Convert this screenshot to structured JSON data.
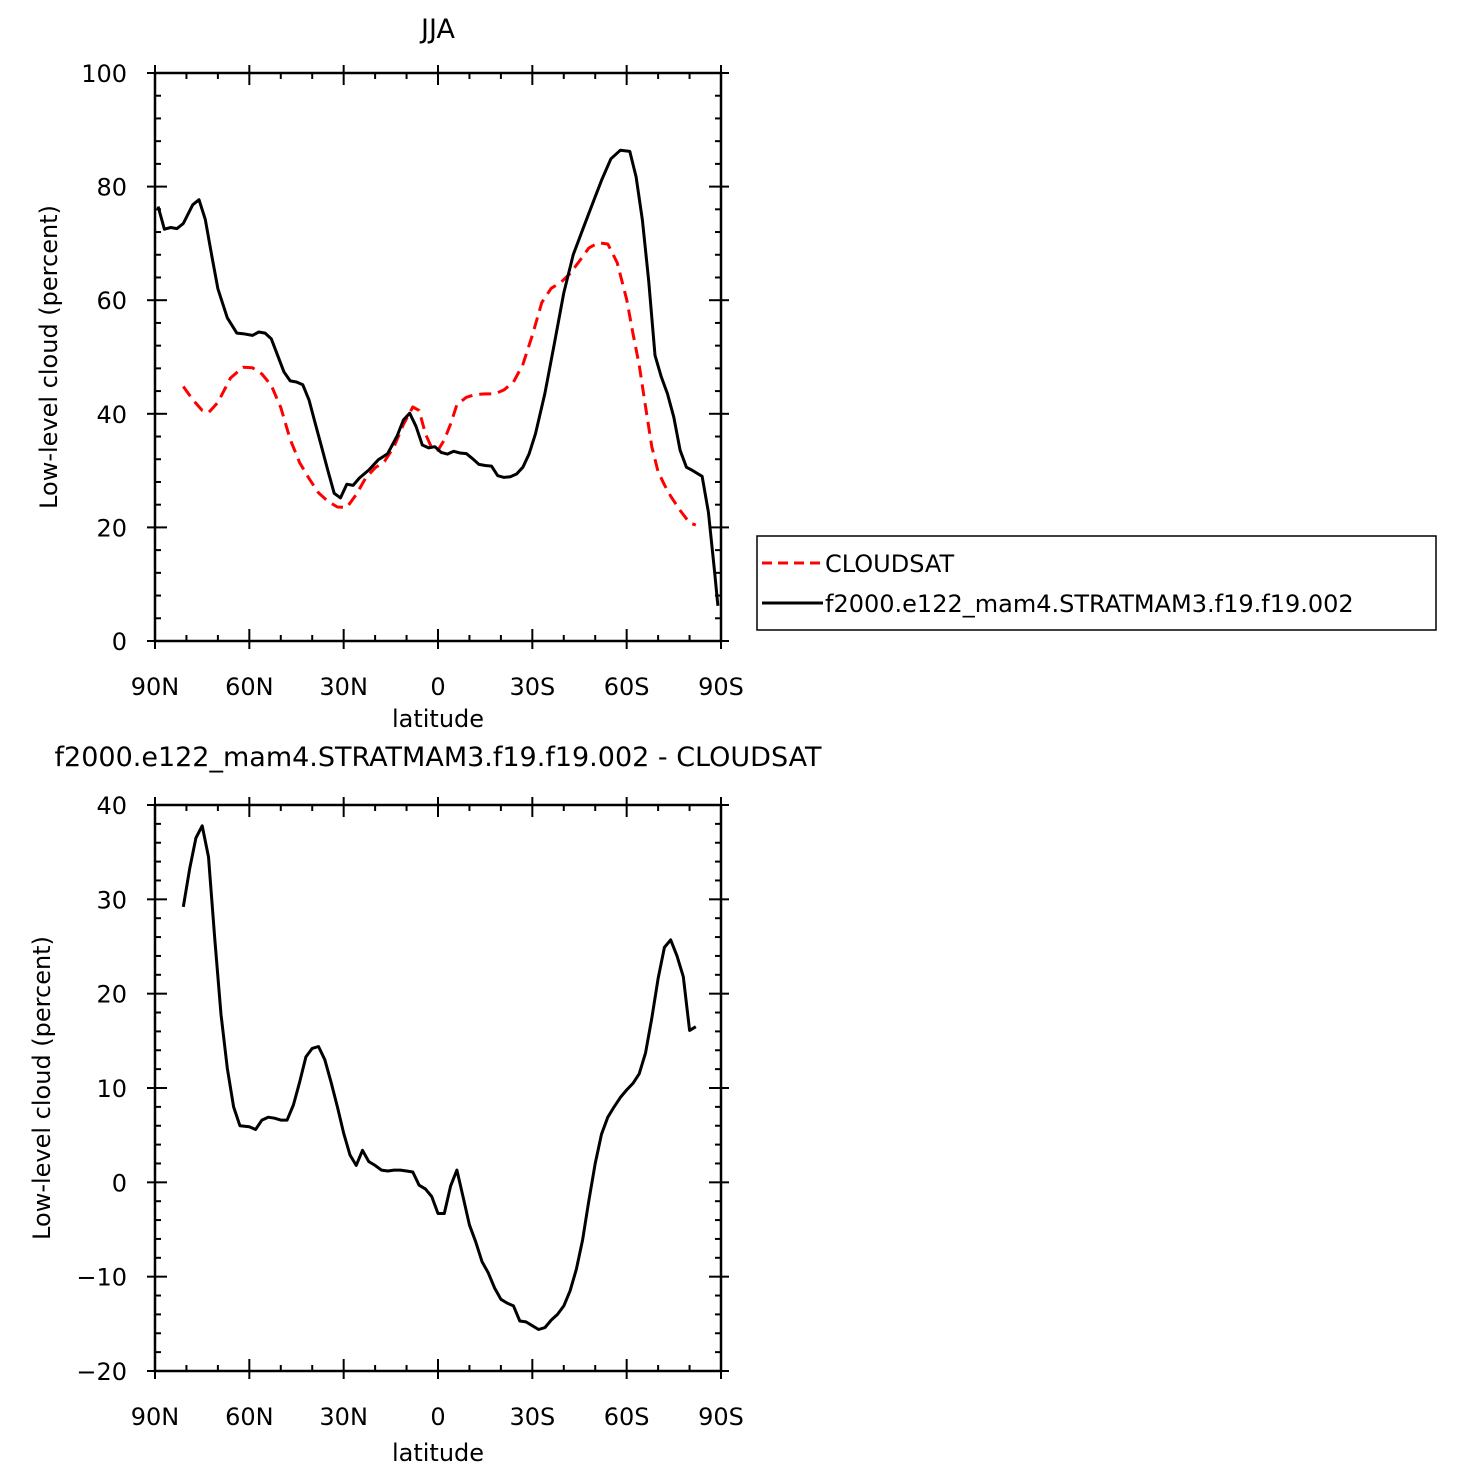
{
  "chart_data": [
    {
      "type": "line",
      "title": "JJA",
      "xlabel": "latitude",
      "ylabel": "Low-level cloud (percent)",
      "xlim": [
        90,
        -90
      ],
      "ylim": [
        0,
        100
      ],
      "x_ticks": [
        {
          "value": 90,
          "label": "90N"
        },
        {
          "value": 60,
          "label": "60N"
        },
        {
          "value": 30,
          "label": "30N"
        },
        {
          "value": 0,
          "label": "0"
        },
        {
          "value": -30,
          "label": "30S"
        },
        {
          "value": -60,
          "label": "60S"
        },
        {
          "value": -90,
          "label": "90S"
        }
      ],
      "y_ticks": [
        0,
        20,
        40,
        60,
        80,
        100
      ],
      "legend": {
        "placement": "right",
        "entries": [
          "CLOUDSAT",
          "f2000.e122_mam4.STRATMAM3.f19.f19.002"
        ]
      },
      "series": [
        {
          "name": "CLOUDSAT",
          "color": "#ff0000",
          "dashed": true,
          "x": [
            81,
            78,
            75,
            73,
            70,
            66,
            62,
            59,
            56,
            53,
            50,
            47,
            44,
            41,
            38,
            35,
            32,
            29,
            26,
            23,
            20,
            17,
            14,
            11,
            8,
            6,
            4,
            2,
            0,
            -2,
            -4,
            -6,
            -9,
            -12,
            -15,
            -18,
            -21,
            -24,
            -27,
            -30,
            -33,
            -36,
            -39,
            -42,
            -45,
            -48,
            -51,
            -54,
            -57,
            -60,
            -62,
            -64,
            -66,
            -68,
            -70,
            -72,
            -74,
            -77,
            -80,
            -82
          ],
          "y": [
            44.8,
            42.5,
            40.6,
            40.2,
            42,
            46.3,
            48.2,
            48.1,
            47,
            45,
            41.1,
            35.5,
            31.4,
            28.6,
            26.1,
            24.6,
            23.6,
            23.5,
            25.8,
            28.7,
            30.5,
            31.6,
            34.2,
            38.1,
            41.2,
            40.6,
            36.5,
            34,
            33.6,
            35.4,
            38.2,
            41.6,
            42.9,
            43.4,
            43.5,
            43.5,
            44.2,
            45.6,
            48.7,
            53.8,
            59.6,
            62.1,
            63.1,
            64.7,
            66.9,
            69.2,
            70.1,
            69.9,
            66.6,
            60.1,
            54.1,
            48.6,
            41.3,
            34.2,
            29.8,
            27.5,
            25.5,
            23,
            20.8,
            20.4
          ]
        },
        {
          "name": "f2000.e122_mam4.STRATMAM3.f19.f19.002",
          "color": "#000000",
          "dashed": false,
          "x": [
            89,
            87,
            85,
            83,
            81,
            78,
            76,
            74,
            72,
            70,
            67,
            64,
            62,
            59,
            57,
            55,
            53,
            51,
            49,
            47,
            45,
            43,
            41,
            39,
            37,
            35,
            33,
            31,
            29,
            27,
            25,
            22,
            19,
            16,
            13,
            11,
            9,
            7,
            5,
            3,
            1,
            -1,
            -3,
            -5,
            -7,
            -9,
            -11,
            -13,
            -15,
            -17,
            -19,
            -21,
            -23,
            -25,
            -27,
            -29,
            -31,
            -34,
            -37,
            -40,
            -43,
            -46,
            -49,
            -52,
            -55,
            -58,
            -61,
            -63,
            -65,
            -67,
            -69,
            -71,
            -73,
            -75,
            -77,
            -79,
            -81,
            -84,
            -86,
            -88,
            -89
          ],
          "y": [
            76.5,
            72.5,
            72.8,
            72.6,
            73.5,
            76.8,
            77.7,
            74.2,
            68,
            62,
            56.9,
            54.2,
            54.1,
            53.8,
            54.4,
            54.2,
            53.2,
            50.3,
            47.4,
            45.8,
            45.6,
            45.1,
            42.4,
            38.2,
            34.1,
            30,
            26,
            25.2,
            27.6,
            27.4,
            28.7,
            30.1,
            31.9,
            33,
            36.1,
            38.9,
            40.1,
            37.8,
            34.5,
            34,
            34.2,
            33.2,
            32.9,
            33.4,
            33.1,
            33,
            32.1,
            31.1,
            30.9,
            30.8,
            29.1,
            28.8,
            28.9,
            29.4,
            30.6,
            33,
            36.5,
            43.6,
            52.3,
            61.3,
            68,
            72.4,
            76.8,
            81.1,
            84.9,
            86.4,
            86.2,
            81.7,
            74.1,
            63.4,
            50.3,
            46.5,
            43.5,
            39.4,
            33.6,
            30.6,
            30,
            29,
            22.7,
            12,
            6.2
          ]
        }
      ]
    },
    {
      "type": "line",
      "title": "f2000.e122_mam4.STRATMAM3.f19.f19.002 - CLOUDSAT",
      "xlabel": "latitude",
      "ylabel": "Low-level cloud (percent)",
      "xlim": [
        90,
        -90
      ],
      "ylim": [
        -20,
        40
      ],
      "x_ticks": [
        {
          "value": 90,
          "label": "90N"
        },
        {
          "value": 60,
          "label": "60N"
        },
        {
          "value": 30,
          "label": "30N"
        },
        {
          "value": 0,
          "label": "0"
        },
        {
          "value": -30,
          "label": "30S"
        },
        {
          "value": -60,
          "label": "60S"
        },
        {
          "value": -90,
          "label": "90S"
        }
      ],
      "y_ticks": [
        -20,
        -10,
        0,
        10,
        20,
        30,
        40
      ],
      "series": [
        {
          "color": "#000000",
          "dashed": false,
          "x": [
            81,
            79,
            77,
            75,
            73,
            71,
            69,
            67,
            65,
            63,
            60,
            58,
            56,
            54,
            52,
            50,
            48,
            46,
            44,
            42,
            40,
            38,
            36,
            34,
            32,
            30,
            28,
            26,
            24,
            22,
            20,
            18,
            16,
            14,
            12,
            10,
            8,
            6,
            4,
            2,
            0,
            -2,
            -4,
            -6,
            -8,
            -10,
            -12,
            -14,
            -16,
            -18,
            -20,
            -22,
            -24,
            -26,
            -28,
            -30,
            -32,
            -34,
            -36,
            -38,
            -40,
            -42,
            -44,
            -46,
            -48,
            -50,
            -52,
            -54,
            -56,
            -58,
            -60,
            -62,
            -64,
            -66,
            -68,
            -70,
            -72,
            -74,
            -76,
            -78,
            -80,
            -82
          ],
          "y": [
            29.2,
            33.2,
            36.5,
            37.8,
            34.5,
            25.9,
            17.8,
            12.1,
            8,
            6,
            5.9,
            5.6,
            6.6,
            6.9,
            6.8,
            6.6,
            6.6,
            8.2,
            10.6,
            13.3,
            14.2,
            14.4,
            13,
            10.6,
            8,
            5.2,
            2.9,
            1.8,
            3.4,
            2.2,
            1.8,
            1.3,
            1.2,
            1.3,
            1.3,
            1.2,
            1.1,
            -0.3,
            -0.7,
            -1.5,
            -3.3,
            -3.3,
            -0.4,
            1.3,
            -1.6,
            -4.5,
            -6.3,
            -8.4,
            -9.6,
            -11.2,
            -12.4,
            -12.8,
            -13.1,
            -14.7,
            -14.8,
            -15.2,
            -15.6,
            -15.4,
            -14.6,
            -14,
            -13.1,
            -11.5,
            -9.2,
            -6.1,
            -1.9,
            2,
            5.1,
            6.9,
            8,
            9,
            9.8,
            10.5,
            11.5,
            13.7,
            17.4,
            21.6,
            24.9,
            25.7,
            24,
            21.8,
            16.1,
            16.5
          ]
        }
      ]
    }
  ]
}
